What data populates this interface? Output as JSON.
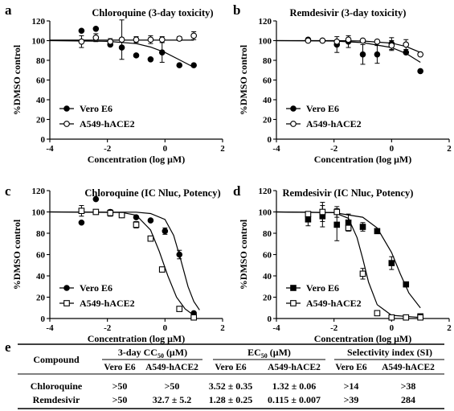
{
  "figure": {
    "panels": [
      "a",
      "b",
      "c",
      "d"
    ],
    "table_letter": "e"
  },
  "chart_data": [
    {
      "panel": "a",
      "type": "scatter",
      "title": "Chloroquine (3-day toxicity)",
      "xlabel": "Concentration (log μM)",
      "ylabel": "%DMSO control",
      "xlim": [
        -4,
        2
      ],
      "ylim": [
        0,
        120
      ],
      "xticks": [
        -4,
        -2,
        0,
        2
      ],
      "yticks": [
        0,
        20,
        40,
        60,
        80,
        100,
        120
      ],
      "legend": "bottom-left",
      "series": [
        {
          "name": "Vero E6",
          "marker": "filled-circle",
          "x": [
            -2.9,
            -2.4,
            -1.9,
            -1.5,
            -1.0,
            -0.5,
            -0.1,
            0.5,
            1.0
          ],
          "y": [
            110,
            112,
            96,
            93,
            85,
            81,
            88,
            75,
            75
          ],
          "err": [
            0,
            0,
            0,
            0,
            0,
            0,
            10,
            0,
            0
          ],
          "fit": [
            [
              -4,
              100
            ],
            [
              -2,
              99.3
            ],
            [
              -1,
              97
            ],
            [
              -0.5,
              93.5
            ],
            [
              0,
              88
            ],
            [
              0.5,
              80.5
            ],
            [
              1,
              73
            ]
          ]
        },
        {
          "name": "A549-hACE2",
          "marker": "open-circle",
          "x": [
            -2.9,
            -2.4,
            -1.9,
            -1.5,
            -1.0,
            -0.5,
            -0.1,
            0.5,
            1.0
          ],
          "y": [
            99,
            103,
            99,
            101,
            101,
            101,
            101,
            102,
            105
          ],
          "err": [
            6,
            4,
            3,
            20,
            3,
            4,
            3,
            2,
            4
          ],
          "fit": [
            [
              -4,
              100.5
            ],
            [
              1,
              100.5
            ]
          ]
        }
      ]
    },
    {
      "panel": "b",
      "type": "scatter",
      "title": "Remdesivir (3-day toxicity)",
      "xlabel": "Concentration (log μM)",
      "ylabel": "%DMSO control",
      "xlim": [
        -4,
        2
      ],
      "ylim": [
        0,
        120
      ],
      "xticks": [
        -4,
        -2,
        0,
        2
      ],
      "yticks": [
        0,
        20,
        40,
        60,
        80,
        100,
        120
      ],
      "legend": "bottom-left",
      "series": [
        {
          "name": "Vero E6",
          "marker": "filled-circle",
          "x": [
            -2.9,
            -2.4,
            -1.9,
            -1.5,
            -1.0,
            -0.5,
            0.0,
            0.5,
            1.0
          ],
          "y": [
            101,
            100,
            96,
            99,
            86,
            86,
            97,
            88,
            69
          ],
          "err": [
            0,
            0,
            8,
            6,
            10,
            9,
            6,
            0,
            0
          ],
          "fit": [
            [
              -4,
              100
            ],
            [
              -2,
              99.6
            ],
            [
              -1,
              98
            ],
            [
              0,
              93
            ],
            [
              0.5,
              87
            ],
            [
              1,
              78
            ]
          ]
        },
        {
          "name": "A549-hACE2",
          "marker": "open-circle",
          "x": [
            -2.9,
            -2.4,
            -1.9,
            -1.5,
            -1.0,
            -0.5,
            0.0,
            0.5,
            1.0
          ],
          "y": [
            100,
            100,
            99,
            101,
            100,
            99,
            95,
            96,
            86
          ],
          "err": [
            0,
            0,
            0,
            0,
            0,
            0,
            5,
            5,
            0
          ],
          "fit": [
            [
              -4,
              100
            ],
            [
              -2,
              100
            ],
            [
              -1,
              99.6
            ],
            [
              0,
              97.5
            ],
            [
              0.5,
              94
            ],
            [
              1,
              88
            ]
          ]
        }
      ]
    },
    {
      "panel": "c",
      "type": "scatter",
      "title": "Chloroquine (IC Nluc, Potency)",
      "xlabel": "Concentration (log μM)",
      "ylabel": "%DMSO control",
      "xlim": [
        -4,
        2
      ],
      "ylim": [
        0,
        120
      ],
      "xticks": [
        -4,
        -2,
        0,
        2
      ],
      "yticks": [
        0,
        20,
        40,
        60,
        80,
        100,
        120
      ],
      "legend": "bottom-left",
      "series": [
        {
          "name": "Vero E6",
          "marker": "filled-circle",
          "x": [
            -2.9,
            -2.4,
            -1.9,
            -1.5,
            -1.0,
            -0.5,
            0.0,
            0.5,
            1.0
          ],
          "y": [
            90,
            112,
            100,
            97,
            95,
            92,
            82,
            60,
            5
          ],
          "err": [
            0,
            0,
            0,
            0,
            0,
            0,
            3,
            4,
            0
          ],
          "fit": [
            [
              -4,
              100
            ],
            [
              -1,
              99.8
            ],
            [
              -0.5,
              98.5
            ],
            [
              0,
              93
            ],
            [
              0.3,
              78
            ],
            [
              0.55,
              55
            ],
            [
              0.8,
              30
            ],
            [
              1.0,
              16
            ],
            [
              1.2,
              8
            ]
          ]
        },
        {
          "name": "A549-hACE2",
          "marker": "open-square",
          "x": [
            -2.9,
            -2.4,
            -1.9,
            -1.5,
            -1.0,
            -0.5,
            -0.1,
            0.5,
            1.0
          ],
          "y": [
            101,
            100,
            99,
            97,
            88,
            75,
            46,
            9,
            1
          ],
          "err": [
            5,
            0,
            3,
            2,
            3,
            2,
            2,
            2,
            0
          ],
          "fit": [
            [
              -4,
              100
            ],
            [
              -1.5,
              99.5
            ],
            [
              -1,
              97
            ],
            [
              -0.5,
              83
            ],
            [
              -0.2,
              63
            ],
            [
              0.1,
              40
            ],
            [
              0.4,
              20
            ],
            [
              0.7,
              9
            ],
            [
              1.0,
              3
            ]
          ]
        }
      ]
    },
    {
      "panel": "d",
      "type": "scatter",
      "title": "Remdesivir (IC Nluc, Potency)",
      "xlabel": "Concentration (log μM)",
      "ylabel": "%DMSO control",
      "xlim": [
        -4,
        2
      ],
      "ylim": [
        0,
        120
      ],
      "xticks": [
        -4,
        -2,
        0,
        2
      ],
      "yticks": [
        0,
        20,
        40,
        60,
        80,
        100,
        120
      ],
      "legend": "bottom-left",
      "series": [
        {
          "name": "Vero E6",
          "marker": "filled-square",
          "x": [
            -2.9,
            -2.4,
            -1.9,
            -1.5,
            -1.0,
            -0.5,
            0.0,
            0.5,
            1.0
          ],
          "y": [
            93,
            96,
            88,
            90,
            86,
            82,
            52,
            32,
            2
          ],
          "err": [
            6,
            10,
            15,
            8,
            4,
            0,
            6,
            0,
            0
          ],
          "fit": [
            [
              -4,
              100
            ],
            [
              -2,
              99.3
            ],
            [
              -1,
              95
            ],
            [
              -0.5,
              85
            ],
            [
              0,
              62
            ],
            [
              0.3,
              42
            ],
            [
              0.6,
              24
            ],
            [
              1.0,
              10
            ]
          ]
        },
        {
          "name": "A549-hACE2",
          "marker": "open-square",
          "x": [
            -2.9,
            -2.4,
            -1.9,
            -1.5,
            -1.0,
            -0.5,
            0.0,
            0.5,
            1.0
          ],
          "y": [
            98,
            100,
            100,
            85,
            42,
            5,
            1,
            1,
            1
          ],
          "err": [
            0,
            9,
            5,
            0,
            5,
            0,
            0,
            0,
            0
          ],
          "fit": [
            [
              -4,
              100
            ],
            [
              -2,
              99.5
            ],
            [
              -1.5,
              94
            ],
            [
              -1.2,
              76
            ],
            [
              -1.0,
              56
            ],
            [
              -0.8,
              34
            ],
            [
              -0.5,
              13
            ],
            [
              0,
              3
            ],
            [
              1,
              1
            ]
          ]
        }
      ]
    },
    {
      "panel": "e",
      "type": "table",
      "headers": {
        "compound": "Compound",
        "cc50_pre": "3-day CC",
        "cc50_sub": "50",
        "cc50_post": " (μM)",
        "ec50_pre": "EC",
        "ec50_sub": "50",
        "ec50_post": " (μM)",
        "si": "Selectivity index (SI)"
      },
      "subheaders": [
        "Vero E6",
        "A549-hACE2",
        "Vero E6",
        "A549-hACE2",
        "Vero E6",
        "A549-hACE2"
      ],
      "rows": [
        [
          "Chloroquine",
          ">50",
          ">50",
          "3.52 ± 0.35",
          "1.32 ± 0.06",
          ">14",
          ">38"
        ],
        [
          "Remdesivir",
          ">50",
          "32.7 ± 5.2",
          "1.28 ± 0.25",
          "0.115 ± 0.007",
          ">39",
          "284"
        ]
      ]
    }
  ]
}
